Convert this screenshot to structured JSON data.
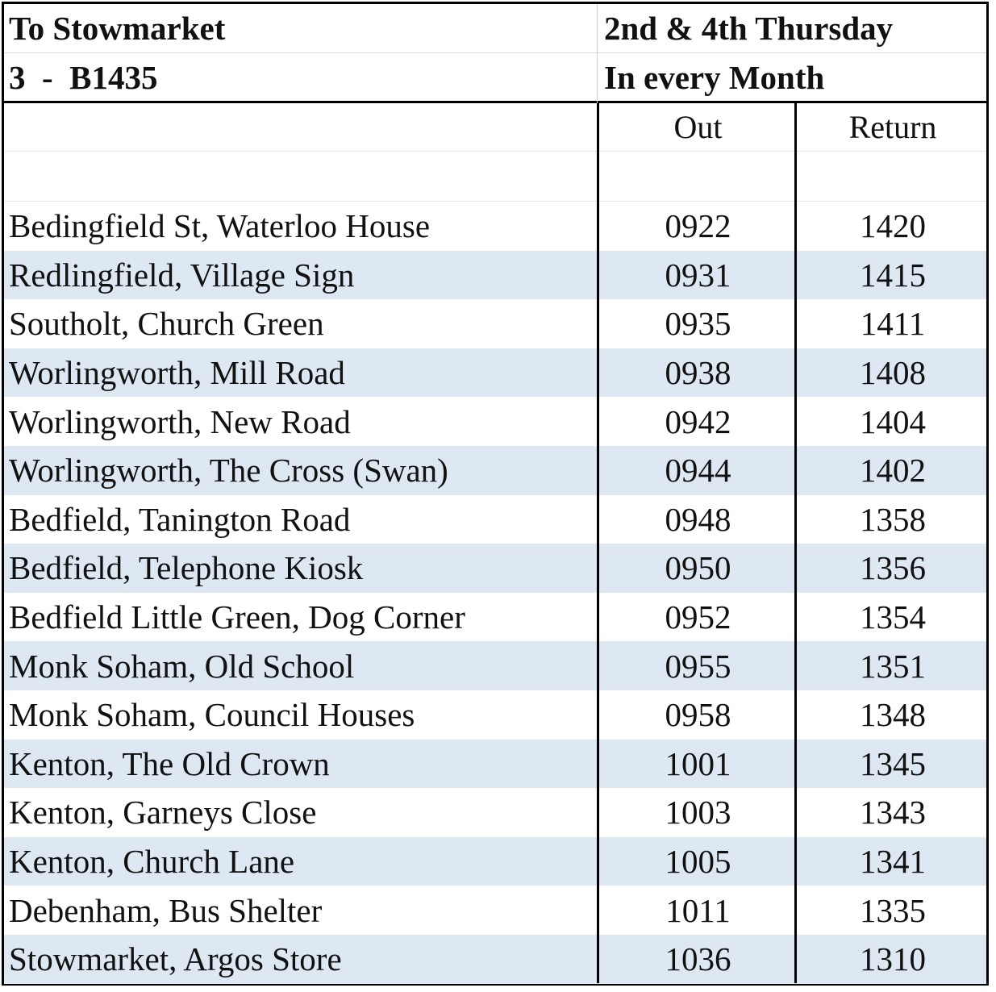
{
  "header": {
    "route_to": "To Stowmarket",
    "days": "2nd & 4th Thursday",
    "route_number": "3  -  B1435",
    "frequency": "In every Month"
  },
  "columns": {
    "out": "Out",
    "return": "Return"
  },
  "stops": [
    {
      "name": "Bedingfield St, Waterloo House",
      "out": "0922",
      "return": "1420"
    },
    {
      "name": "Redlingfield, Village Sign",
      "out": "0931",
      "return": "1415"
    },
    {
      "name": "Southolt, Church Green",
      "out": "0935",
      "return": "1411"
    },
    {
      "name": "Worlingworth, Mill Road",
      "out": "0938",
      "return": "1408"
    },
    {
      "name": "Worlingworth, New Road",
      "out": "0942",
      "return": "1404"
    },
    {
      "name": "Worlingworth, The Cross (Swan)",
      "out": "0944",
      "return": "1402"
    },
    {
      "name": "Bedfield, Tanington Road",
      "out": "0948",
      "return": "1358"
    },
    {
      "name": "Bedfield, Telephone Kiosk",
      "out": "0950",
      "return": "1356"
    },
    {
      "name": "Bedfield Little Green, Dog Corner",
      "out": "0952",
      "return": "1354"
    },
    {
      "name": "Monk Soham, Old School",
      "out": "0955",
      "return": "1351"
    },
    {
      "name": "Monk Soham, Council Houses",
      "out": "0958",
      "return": "1348"
    },
    {
      "name": "Kenton, The Old Crown",
      "out": "1001",
      "return": "1345"
    },
    {
      "name": "Kenton, Garneys Close",
      "out": "1003",
      "return": "1343"
    },
    {
      "name": "Kenton, Church Lane",
      "out": "1005",
      "return": "1341"
    },
    {
      "name": "Debenham, Bus Shelter",
      "out": "1011",
      "return": "1335"
    },
    {
      "name": "Stowmarket, Argos Store",
      "out": "1036",
      "return": "1310"
    }
  ],
  "colors": {
    "stripe": "#dde8f3",
    "border": "#000000"
  }
}
